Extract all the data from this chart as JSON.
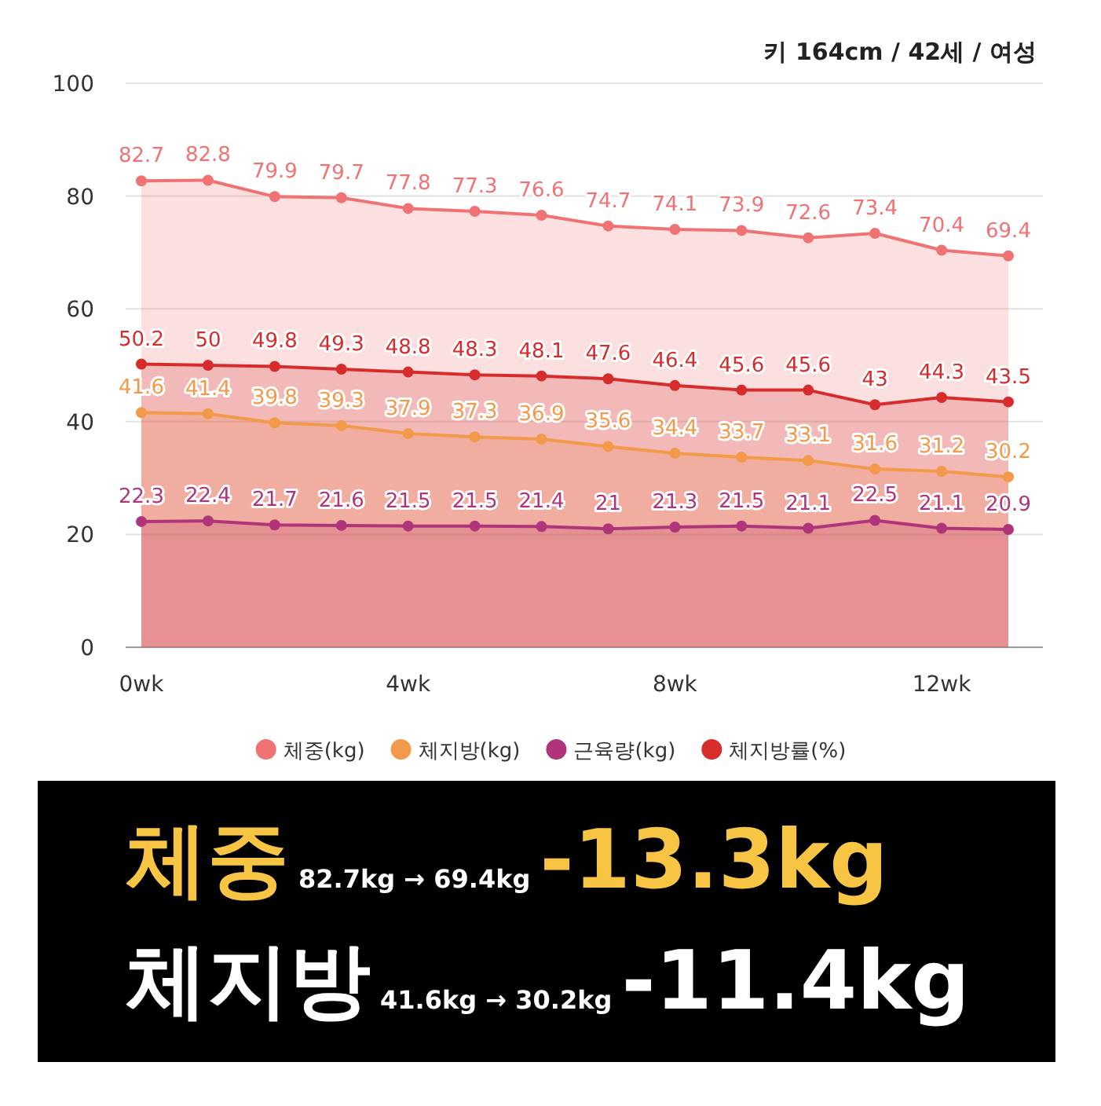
{
  "chart_data": {
    "type": "area",
    "subtitle": "키 164cm / 42세 / 여성",
    "categories": [
      "0wk",
      null,
      null,
      null,
      "4wk",
      null,
      null,
      null,
      "8wk",
      null,
      null,
      null,
      "12wk",
      null
    ],
    "series": [
      {
        "name": "체중(kg)",
        "color": "#f07272",
        "values": [
          82.7,
          82.8,
          79.9,
          79.7,
          77.8,
          77.3,
          76.6,
          74.7,
          74.1,
          73.9,
          72.6,
          73.4,
          70.4,
          69.4
        ]
      },
      {
        "name": "체지방(kg)",
        "color": "#f29a4a",
        "values": [
          41.6,
          41.4,
          39.8,
          39.3,
          37.9,
          37.3,
          36.9,
          35.6,
          34.4,
          33.7,
          33.1,
          31.6,
          31.2,
          30.2
        ]
      },
      {
        "name": "근육량(kg)",
        "color": "#b0347a",
        "values": [
          22.3,
          22.4,
          21.7,
          21.6,
          21.5,
          21.5,
          21.4,
          21,
          21.3,
          21.5,
          21.1,
          22.5,
          21.1,
          20.9
        ]
      },
      {
        "name": "체지방률(%)",
        "color": "#d62c2c",
        "values": [
          50.2,
          50,
          49.8,
          49.3,
          48.8,
          48.3,
          48.1,
          47.6,
          46.4,
          45.6,
          45.6,
          43,
          44.3,
          43.5
        ]
      }
    ],
    "ylim": [
      0,
      100
    ],
    "yticks": [
      0,
      20,
      40,
      60,
      80,
      100
    ],
    "grid": "y",
    "legend": "bottom",
    "marker": "circle",
    "data_labels": true,
    "annotations": [
      "체중",
      "82.7kg → 69.4kg",
      "-13.3kg",
      "체지방",
      "41.6kg → 30.2kg",
      "-11.4kg"
    ]
  }
}
